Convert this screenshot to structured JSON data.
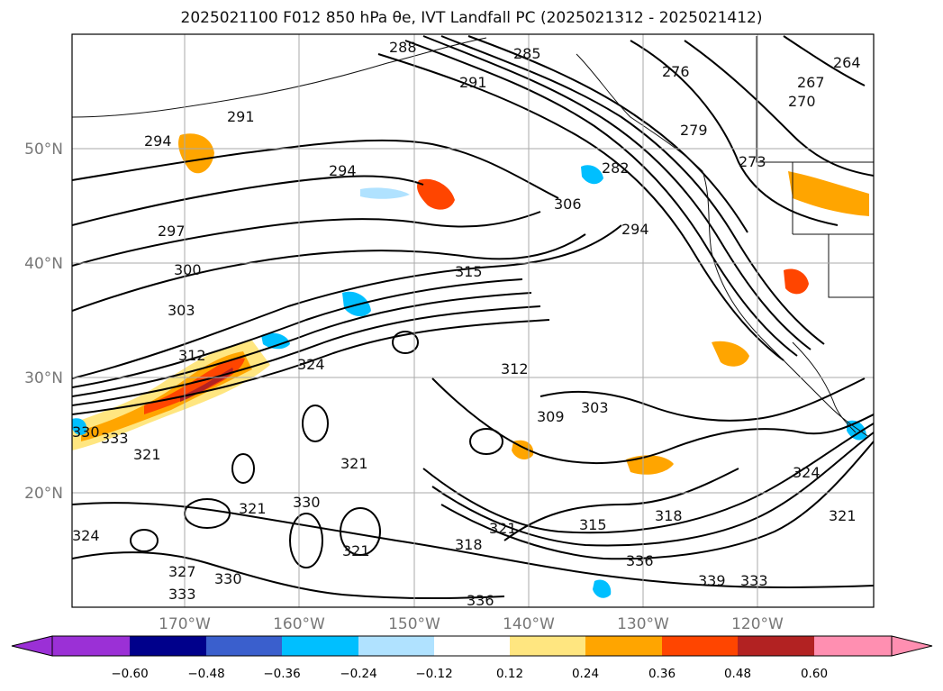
{
  "title": "2025021100 F012 850 hPa θe, IVT Landfall PC (2025021312 - 2025021412)",
  "map": {
    "lat_labels": [
      "50°N",
      "40°N",
      "30°N",
      "20°N"
    ],
    "lon_labels": [
      "170°W",
      "160°W",
      "150°W",
      "140°W",
      "130°W",
      "120°W"
    ],
    "contour_labels": [
      "288",
      "285",
      "291",
      "276",
      "267",
      "264",
      "270",
      "291",
      "294",
      "279",
      "273",
      "294",
      "282",
      "297",
      "306",
      "294",
      "300",
      "315",
      "303",
      "312",
      "324",
      "312",
      "303",
      "309",
      "330",
      "333",
      "321",
      "321",
      "324",
      "321",
      "330",
      "321",
      "318",
      "321",
      "315",
      "318",
      "336",
      "339",
      "333",
      "321",
      "327",
      "330",
      "333",
      "336",
      "324"
    ]
  },
  "colorbar": {
    "tick_labels": [
      "−0.60",
      "−0.48",
      "−0.36",
      "−0.24",
      "−0.12",
      "0.12",
      "0.24",
      "0.36",
      "0.48",
      "0.60"
    ],
    "colors": [
      "#9b30d6",
      "#00008b",
      "#3a5fcd",
      "#00bfff",
      "#b0e2ff",
      "#ffffff",
      "#ffe680",
      "#ffa500",
      "#ff4500",
      "#b22222",
      "#ff8fb1"
    ]
  }
}
